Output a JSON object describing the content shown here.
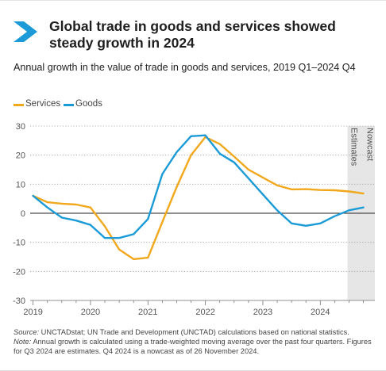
{
  "header": {
    "title": "Global trade in goods and services showed steady growth in 2024",
    "subtitle": "Annual growth in the value of trade in goods and services, 2019 Q1–2024 Q4"
  },
  "notes": {
    "source_label": "Source:",
    "source_text": "UNCTADstat; UN Trade and Development (UNCTAD) calculations based on national statistics.",
    "note_label": "Note:",
    "note_text": "Annual growth is calculated using a trade-weighted moving average over the past four quarters. Figures for Q3 2024 are estimates. Q4 2024 is a nowcast as of 26 November 2024."
  },
  "colors": {
    "services": "#f2a81d",
    "goods": "#1a9bd7",
    "brand": "#1a9bd7",
    "nowcast_band": "#e6e6e6"
  },
  "chart_data": {
    "type": "line",
    "title": "",
    "xlabel": "",
    "ylabel": "",
    "x_ticks": [
      "2019",
      "2020",
      "2021",
      "2022",
      "2023",
      "2024"
    ],
    "ylim": [
      -30,
      30
    ],
    "y_ticks": [
      -30,
      -20,
      -10,
      0,
      10,
      20,
      30
    ],
    "grid": "horizontal dotted",
    "legend_position": "top-left",
    "annotations": [
      {
        "text": "Nowcast",
        "region": "2024 Q4"
      },
      {
        "text": "Estimates",
        "region": "2024 Q3"
      }
    ],
    "series": [
      {
        "name": "Services",
        "x": [
          2019.0,
          2019.25,
          2019.5,
          2019.75,
          2020.0,
          2020.25,
          2020.5,
          2020.75,
          2021.0,
          2021.25,
          2021.5,
          2021.75,
          2022.0,
          2022.25,
          2022.5,
          2022.75,
          2023.0,
          2023.25,
          2023.5,
          2023.75,
          2024.0,
          2024.25,
          2024.5,
          2024.75
        ],
        "values": [
          6.0,
          3.8,
          3.3,
          3.0,
          2.0,
          -4.5,
          -12.5,
          -15.8,
          -15.3,
          -3.0,
          9.0,
          20.0,
          26.2,
          23.8,
          19.5,
          15.0,
          12.3,
          9.6,
          8.2,
          8.3,
          8.0,
          7.9,
          7.5,
          6.8
        ]
      },
      {
        "name": "Goods",
        "x": [
          2019.0,
          2019.25,
          2019.5,
          2019.75,
          2020.0,
          2020.25,
          2020.5,
          2020.75,
          2021.0,
          2021.25,
          2021.5,
          2021.75,
          2022.0,
          2022.25,
          2022.5,
          2022.75,
          2023.0,
          2023.25,
          2023.5,
          2023.75,
          2024.0,
          2024.25,
          2024.5,
          2024.75
        ],
        "values": [
          6.0,
          2.0,
          -1.5,
          -2.5,
          -4.0,
          -8.5,
          -8.5,
          -7.2,
          -2.0,
          13.5,
          21.0,
          26.5,
          26.8,
          20.5,
          17.5,
          12.0,
          6.5,
          1.0,
          -3.5,
          -4.3,
          -3.5,
          -1.0,
          1.0,
          2.0
        ]
      }
    ]
  }
}
